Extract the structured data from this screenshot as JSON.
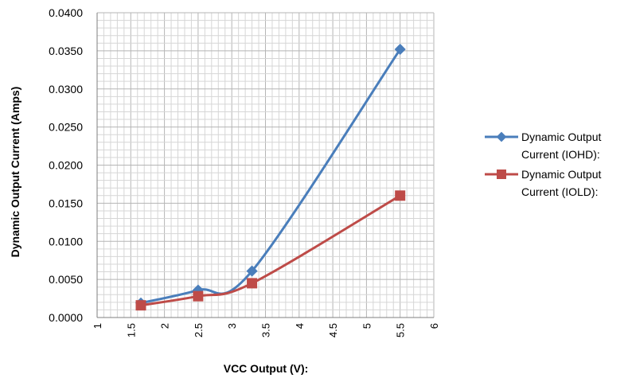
{
  "chart_data": {
    "type": "line",
    "xlabel": "VCC Output (V):",
    "ylabel": "Dynamic Output Current (Amps)",
    "xlim": [
      1,
      6
    ],
    "ylim": [
      0,
      0.04
    ],
    "x_ticks": [
      "1",
      "1.5",
      "2",
      "2.5",
      "3",
      "3.5",
      "4",
      "4.5",
      "5",
      "5.5",
      "6"
    ],
    "y_ticks": [
      "0.0000",
      "0.0050",
      "0.0100",
      "0.0150",
      "0.0200",
      "0.0250",
      "0.0300",
      "0.0350",
      "0.0400"
    ],
    "grid": true,
    "legend_position": "right",
    "series": [
      {
        "name_line1": "Dynamic Output",
        "name_line2": "Current (IOHD):",
        "color": "#4a7ebb",
        "marker": "diamond",
        "x": [
          1.65,
          2.5,
          3.3,
          5.5
        ],
        "y": [
          0.0019,
          0.0036,
          0.0061,
          0.0352
        ]
      },
      {
        "name_line1": "Dynamic Output",
        "name_line2": "Current (IOLD):",
        "color": "#be4b48",
        "marker": "square",
        "x": [
          1.65,
          2.5,
          3.3,
          5.5
        ],
        "y": [
          0.0016,
          0.0028,
          0.0045,
          0.016
        ]
      }
    ]
  }
}
